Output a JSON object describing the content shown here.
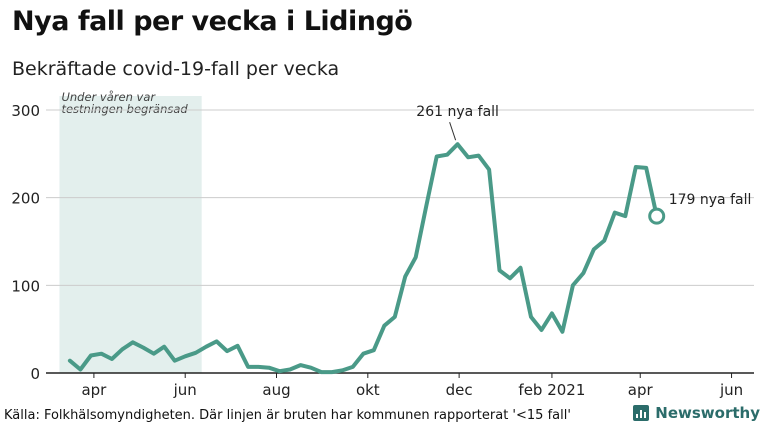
{
  "header": {
    "title": "Nya fall per vecka i Lidingö",
    "subtitle": "Bekräftade covid-19-fall per vecka"
  },
  "footer": {
    "source": "Källa: Folkhälsomyndigheten. Där linjen är bruten har kommunen rapporterat '<15 fall'",
    "brand": "Newsworthy"
  },
  "colors": {
    "line": "#4a9a88",
    "shade": "#e3efed",
    "grid": "#cccccc",
    "axis": "#222222",
    "brand": "#2b6c6a"
  },
  "chart_data": {
    "type": "line",
    "title": "Nya fall per vecka i Lidingö",
    "subtitle": "Bekräftade covid-19-fall per vecka",
    "xlabel": "",
    "ylabel": "",
    "ylim": [
      0,
      300
    ],
    "yticks": [
      0,
      100,
      200,
      300
    ],
    "xlim": [
      "2020-02-29",
      "2021-06-16"
    ],
    "xticks": [
      {
        "date": "2020-04-01",
        "label": "apr"
      },
      {
        "date": "2020-06-01",
        "label": "jun"
      },
      {
        "date": "2020-08-01",
        "label": "aug"
      },
      {
        "date": "2020-10-01",
        "label": "okt"
      },
      {
        "date": "2020-12-01",
        "label": "dec"
      },
      {
        "date": "2021-02-01",
        "label": "feb 2021"
      },
      {
        "date": "2021-04-01",
        "label": "apr"
      },
      {
        "date": "2021-06-01",
        "label": "jun"
      }
    ],
    "grid": true,
    "shaded_region": {
      "from": "2020-03-09",
      "to": "2020-06-12",
      "label_line1": "Under våren var",
      "label_line2": "testningen begränsad"
    },
    "series": [
      {
        "points": [
          [
            "2020-03-16",
            14
          ],
          [
            "2020-03-23",
            4
          ],
          [
            "2020-03-30",
            20
          ],
          [
            "2020-04-06",
            22
          ],
          [
            "2020-04-13",
            16
          ],
          [
            "2020-04-20",
            27
          ],
          [
            "2020-04-27",
            35
          ],
          [
            "2020-05-04",
            29
          ],
          [
            "2020-05-11",
            22
          ],
          [
            "2020-05-18",
            30
          ],
          [
            "2020-05-25",
            14
          ],
          [
            "2020-06-01",
            19
          ],
          [
            "2020-06-08",
            23
          ],
          [
            "2020-06-15",
            30
          ],
          [
            "2020-06-22",
            36
          ],
          [
            "2020-06-29",
            25
          ],
          [
            "2020-07-06",
            31
          ],
          [
            "2020-07-13",
            7
          ],
          [
            "2020-07-20",
            7
          ],
          [
            "2020-07-27",
            6
          ],
          [
            "2020-08-03",
            2
          ],
          [
            "2020-08-10",
            4
          ],
          [
            "2020-08-17",
            9
          ],
          [
            "2020-08-24",
            6
          ],
          [
            "2020-08-31",
            1
          ],
          [
            "2020-09-07",
            1
          ],
          [
            "2020-09-14",
            3
          ],
          [
            "2020-09-21",
            7
          ],
          [
            "2020-09-28",
            22
          ],
          [
            "2020-10-05",
            26
          ],
          [
            "2020-10-12",
            54
          ],
          [
            "2020-10-19",
            64
          ],
          [
            "2020-10-26",
            110
          ],
          [
            "2020-11-02",
            132
          ],
          [
            "2020-11-09",
            190
          ],
          [
            "2020-11-16",
            247
          ],
          [
            "2020-11-23",
            249
          ],
          [
            "2020-11-30",
            261
          ],
          [
            "2020-12-07",
            246
          ],
          [
            "2020-12-14",
            248
          ],
          [
            "2020-12-21",
            232
          ],
          [
            "2020-12-28",
            117
          ],
          [
            "2021-01-04",
            108
          ],
          [
            "2021-01-11",
            120
          ],
          [
            "2021-01-18",
            64
          ],
          [
            "2021-01-25",
            49
          ],
          [
            "2021-02-01",
            68
          ],
          [
            "2021-02-08",
            47
          ],
          [
            "2021-02-15",
            100
          ],
          [
            "2021-02-22",
            114
          ],
          [
            "2021-03-01",
            141
          ],
          [
            "2021-03-08",
            151
          ],
          [
            "2021-03-15",
            183
          ],
          [
            "2021-03-22",
            179
          ],
          [
            "2021-03-29",
            235
          ],
          [
            "2021-04-05",
            234
          ],
          [
            "2021-04-12",
            179
          ]
        ]
      }
    ],
    "annotations": [
      {
        "text": "261 nya fall",
        "date": "2020-11-30",
        "value": 261,
        "type": "peak"
      },
      {
        "text": "179 nya fall",
        "date": "2021-04-12",
        "value": 179,
        "type": "last"
      }
    ]
  }
}
